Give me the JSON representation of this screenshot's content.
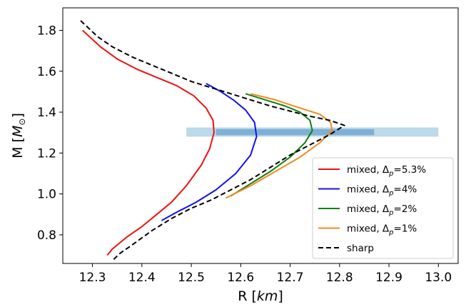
{
  "chart_data": {
    "type": "line",
    "title": "",
    "xlabel": "R [km]",
    "ylabel": "M [M⊙]",
    "xlim": [
      12.24,
      13.04
    ],
    "ylim": [
      0.66,
      1.91
    ],
    "x_ticks": [
      12.3,
      12.4,
      12.5,
      12.6,
      12.7,
      12.8,
      12.9,
      13.0
    ],
    "x_tick_labels": [
      "12.3",
      "12.4",
      "12.5",
      "12.6",
      "12.7",
      "12.8",
      "12.9",
      "13.0"
    ],
    "y_ticks": [
      0.8,
      1.0,
      1.2,
      1.4,
      1.6,
      1.8
    ],
    "y_tick_labels": [
      "0.8",
      "1.0",
      "1.2",
      "1.4",
      "1.6",
      "1.8"
    ],
    "grid": false,
    "legend_position": "lower-right",
    "bands": [
      {
        "x": [
          12.49,
          13.0
        ],
        "y": [
          1.28,
          1.325
        ],
        "color": "#9ecae1",
        "opacity": 0.7
      },
      {
        "x": [
          12.55,
          12.87
        ],
        "y": [
          1.287,
          1.317
        ],
        "color": "#4d8ec4",
        "opacity": 0.55
      }
    ],
    "series": [
      {
        "name": "mixed, Δp=5.3%",
        "color": "#ee1111",
        "dash": "solid",
        "x": [
          12.33,
          12.34,
          12.355,
          12.37,
          12.4,
          12.43,
          12.46,
          12.49,
          12.52,
          12.537,
          12.546,
          12.544,
          12.53,
          12.505,
          12.47,
          12.43,
          12.39,
          12.35,
          12.316,
          12.28
        ],
        "y": [
          0.7,
          0.73,
          0.76,
          0.79,
          0.84,
          0.9,
          0.96,
          1.04,
          1.14,
          1.22,
          1.3,
          1.36,
          1.42,
          1.48,
          1.53,
          1.57,
          1.61,
          1.66,
          1.72,
          1.8
        ]
      },
      {
        "name": "mixed, Δp=4%",
        "color": "#1111ee",
        "dash": "solid",
        "x": [
          12.44,
          12.47,
          12.51,
          12.55,
          12.59,
          12.62,
          12.632,
          12.628,
          12.61,
          12.585,
          12.56,
          12.53
        ],
        "y": [
          0.87,
          0.91,
          0.96,
          1.02,
          1.1,
          1.19,
          1.28,
          1.35,
          1.41,
          1.46,
          1.5,
          1.54
        ]
      },
      {
        "name": "mixed, Δp=2%",
        "color": "#138013",
        "dash": "solid",
        "x": [
          12.58,
          12.62,
          12.66,
          12.7,
          12.73,
          12.745,
          12.74,
          12.72,
          12.69,
          12.65,
          12.61
        ],
        "y": [
          0.99,
          1.05,
          1.11,
          1.18,
          1.25,
          1.31,
          1.36,
          1.4,
          1.43,
          1.46,
          1.49
        ]
      },
      {
        "name": "mixed, Δp=1%",
        "color": "#f5881f",
        "dash": "solid",
        "x": [
          12.57,
          12.62,
          12.67,
          12.72,
          12.76,
          12.785,
          12.782,
          12.76,
          12.72,
          12.67,
          12.62
        ],
        "y": [
          0.98,
          1.04,
          1.11,
          1.18,
          1.25,
          1.31,
          1.35,
          1.39,
          1.42,
          1.46,
          1.49
        ]
      },
      {
        "name": "sharp",
        "color": "#000000",
        "dash": "dashed",
        "x": [
          12.343,
          12.356,
          12.38,
          12.42,
          12.46,
          12.5,
          12.54,
          12.58,
          12.62,
          12.66,
          12.7,
          12.74,
          12.78,
          12.81,
          12.78,
          12.74,
          12.7,
          12.66,
          12.62,
          12.58,
          12.54,
          12.5,
          12.46,
          12.42,
          12.38,
          12.34,
          12.31,
          12.275
        ],
        "y": [
          0.68,
          0.71,
          0.75,
          0.82,
          0.88,
          0.93,
          0.97,
          1.02,
          1.07,
          1.13,
          1.19,
          1.24,
          1.29,
          1.335,
          1.36,
          1.38,
          1.405,
          1.43,
          1.46,
          1.49,
          1.52,
          1.55,
          1.59,
          1.63,
          1.67,
          1.72,
          1.77,
          1.85
        ]
      }
    ]
  }
}
